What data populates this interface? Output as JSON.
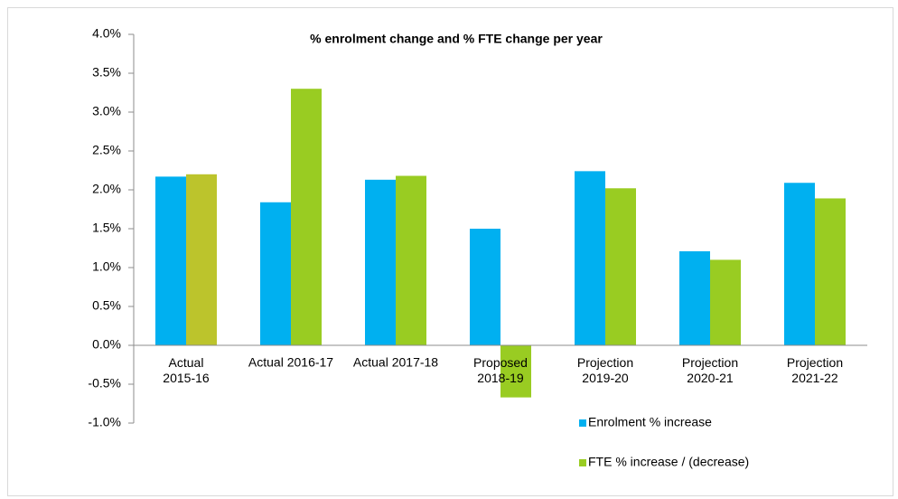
{
  "chart_data": {
    "type": "bar",
    "title": "% enrolment change and % FTE change per year",
    "categories": [
      "Actual\n2015-16",
      "Actual 2016-17",
      "Actual 2017-18",
      "Proposed\n2018-19",
      "Projection\n2019-20",
      "Projection\n2020-21",
      "Projection\n2021-22"
    ],
    "series": [
      {
        "name": "Enrolment % increase",
        "color": "#00b0f0",
        "values": [
          2.17,
          1.84,
          2.13,
          1.5,
          2.24,
          1.21,
          2.09
        ]
      },
      {
        "name": "FTE % increase / (decrease)",
        "color": "#99cc22",
        "point_colors": [
          "#bcc42c",
          null,
          null,
          null,
          null,
          null,
          null
        ],
        "values": [
          2.2,
          3.3,
          2.18,
          -0.67,
          2.02,
          1.1,
          1.89
        ]
      }
    ],
    "ylim": [
      -1,
      4
    ],
    "yticks": [
      {
        "value": -1,
        "label": "-1.0%"
      },
      {
        "value": -0.5,
        "label": "-0.5%"
      },
      {
        "value": 0,
        "label": "0.0%"
      },
      {
        "value": 0.5,
        "label": "0.5%"
      },
      {
        "value": 1,
        "label": "1.0%"
      },
      {
        "value": 1.5,
        "label": "1.5%"
      },
      {
        "value": 2,
        "label": "2.0%"
      },
      {
        "value": 2.5,
        "label": "2.5%"
      },
      {
        "value": 3,
        "label": "3.0%"
      },
      {
        "value": 3.5,
        "label": "3.5%"
      },
      {
        "value": 4,
        "label": "4.0%"
      }
    ],
    "grid": false,
    "legend": "bottom-right"
  }
}
